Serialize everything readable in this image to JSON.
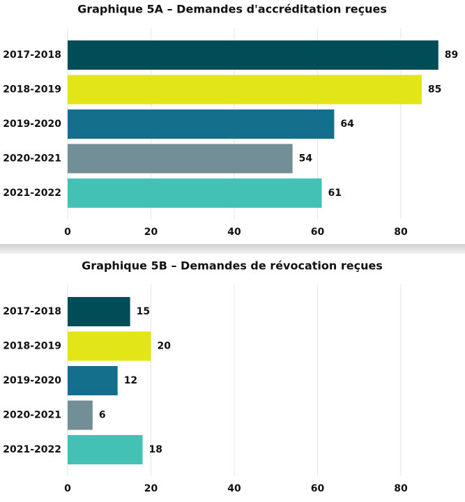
{
  "chart_data": [
    {
      "type": "bar",
      "orientation": "horizontal",
      "title": "Graphique 5A – Demandes d'accréditation reçues",
      "categories": [
        "2017-2018",
        "2018-2019",
        "2019-2020",
        "2020-2021",
        "2021-2022"
      ],
      "values": [
        89,
        85,
        64,
        54,
        61
      ],
      "colors": [
        "#004c57",
        "#e2e619",
        "#136f8c",
        "#728e96",
        "#43c1b5"
      ],
      "xlim": [
        0,
        90
      ],
      "xticks": [
        0,
        20,
        40,
        60,
        80
      ],
      "grid": true
    },
    {
      "type": "bar",
      "orientation": "horizontal",
      "title": "Graphique 5B – Demandes de révocation reçues",
      "categories": [
        "2017-2018",
        "2018-2019",
        "2019-2020",
        "2020-2021",
        "2021-2022"
      ],
      "values": [
        15,
        20,
        12,
        6,
        18
      ],
      "colors": [
        "#004c57",
        "#e2e619",
        "#136f8c",
        "#728e96",
        "#43c1b5"
      ],
      "xlim": [
        0,
        90
      ],
      "xticks": [
        0,
        20,
        40,
        60,
        80
      ],
      "grid": true
    }
  ]
}
